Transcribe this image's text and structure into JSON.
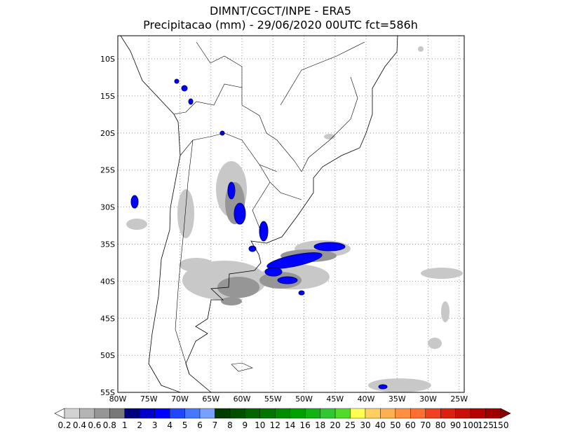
{
  "header": {
    "title_line1": "DIMNT/CGCT/INPE -  ERA5",
    "title_line2": "Precipitacao (mm) - 29/06/2020 00UTC fct=586h"
  },
  "map": {
    "lat_labels": [
      "10S",
      "15S",
      "20S",
      "25S",
      "30S",
      "35S",
      "40S",
      "45S",
      "50S",
      "55S"
    ],
    "lon_labels": [
      "80W",
      "75W",
      "70W",
      "65W",
      "60W",
      "55W",
      "50W",
      "45W",
      "40W",
      "35W",
      "30W",
      "25W"
    ]
  },
  "colorbar": {
    "labels": [
      "0.2",
      "0.4",
      "0.6",
      "0.8",
      "1",
      "2",
      "3",
      "4",
      "5",
      "6",
      "7",
      "8",
      "9",
      "10",
      "12",
      "14",
      "16",
      "18",
      "20",
      "25",
      "30",
      "40",
      "50",
      "60",
      "70",
      "80",
      "90",
      "100",
      "125",
      "150"
    ],
    "colors": [
      "#ffffff",
      "#d2d2d2",
      "#b4b4b4",
      "#969696",
      "#787878",
      "#00007d",
      "#0000c8",
      "#0000ff",
      "#2046ff",
      "#4678ff",
      "#78a0ff",
      "#003c00",
      "#005000",
      "#006400",
      "#007800",
      "#008c00",
      "#00a000",
      "#10b410",
      "#30c830",
      "#50dc28",
      "#ffff50",
      "#ffd060",
      "#ffb050",
      "#ff9040",
      "#ff7030",
      "#f04020",
      "#dc2010",
      "#c81008",
      "#b40000",
      "#a00000",
      "#8c0000"
    ]
  }
}
